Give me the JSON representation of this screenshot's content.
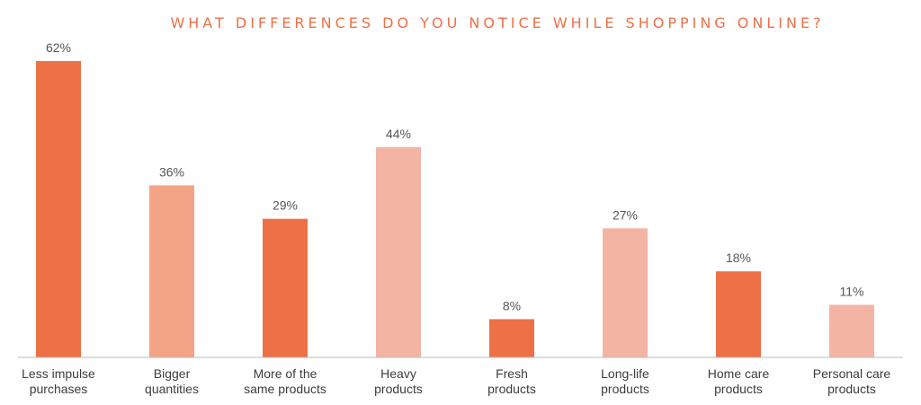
{
  "chart_data": {
    "type": "bar",
    "title": "WHAT DIFFERENCES DO YOU NOTICE WHILE SHOPPING ONLINE?",
    "categories": [
      [
        "Less impulse",
        "purchases"
      ],
      [
        "Bigger",
        "quantities"
      ],
      [
        "More of the",
        "same products"
      ],
      [
        "Heavy",
        "products"
      ],
      [
        "Fresh",
        "products"
      ],
      [
        "Long-life",
        "products"
      ],
      [
        "Home care",
        "products"
      ],
      [
        "Personal care",
        "products"
      ]
    ],
    "values": [
      62,
      36,
      29,
      44,
      8,
      27,
      18,
      11
    ],
    "value_labels": [
      "62%",
      "36%",
      "29%",
      "44%",
      "8%",
      "27%",
      "18%",
      "11%"
    ],
    "bar_colors": [
      "#ee7047",
      "#f3a487",
      "#ee7047",
      "#f4b4a4",
      "#ee7047",
      "#f4b4a4",
      "#ee7047",
      "#f4b4a4"
    ],
    "ylim": [
      0,
      62
    ],
    "grid": false,
    "xlabel": "",
    "ylabel": ""
  },
  "colors": {
    "title": "#ee7047",
    "axis": "#bbbbbb"
  }
}
